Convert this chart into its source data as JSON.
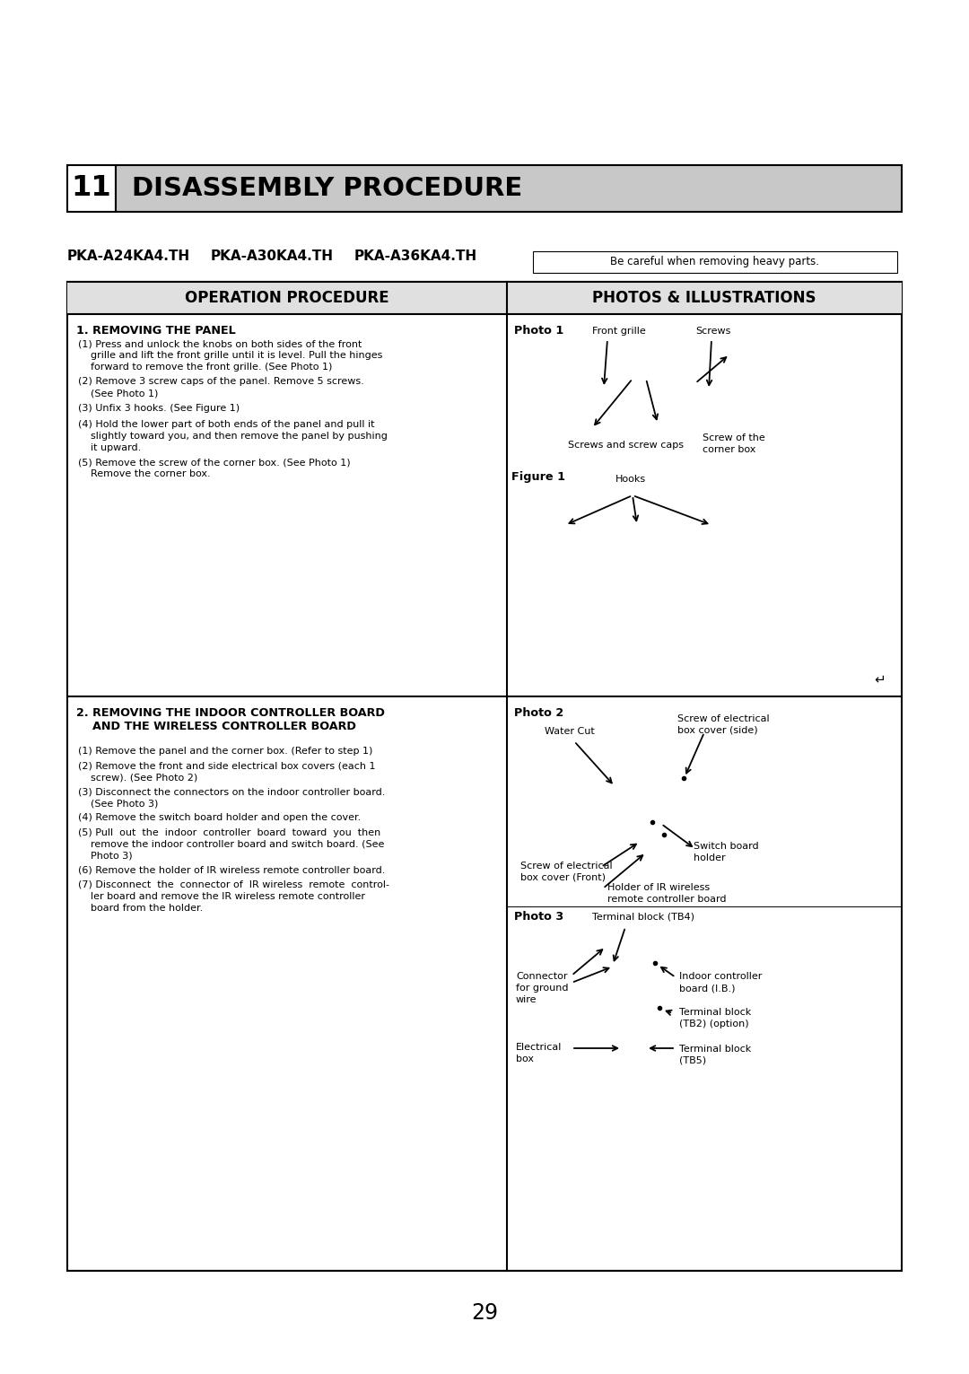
{
  "page_bg": "#ffffff",
  "page_number": "29",
  "section_number": "11",
  "section_title": "DISASSEMBLY PROCEDURE",
  "section_bg": "#c8c8c8",
  "model_line1": "PKA-A24KA4.TH",
  "model_line2": "PKA-A30KA4.TH",
  "model_line3": "PKA-A36KA4.TH",
  "caution_box": "Be careful when removing heavy parts.",
  "col_left_header": "OPERATION PROCEDURE",
  "col_right_header": "PHOTOS & ILLUSTRATIONS",
  "s1_title": "1. REMOVING THE PANEL",
  "s1_step1": "(1) Press and unlock the knobs on both sides of the front\n    grille and lift the front grille until it is level. Pull the hinges\n    forward to remove the front grille. (See Photo 1)",
  "s1_step2": "(2) Remove 3 screw caps of the panel. Remove 5 screws.\n    (See Photo 1)",
  "s1_step3": "(3) Unfix 3 hooks. (See Figure 1)",
  "s1_step4": "(4) Hold the lower part of both ends of the panel and pull it\n    slightly toward you, and then remove the panel by pushing\n    it upward.",
  "s1_step5": "(5) Remove the screw of the corner box. (See Photo 1)\n    Remove the corner box.",
  "s2_title1": "2. REMOVING THE INDOOR CONTROLLER BOARD",
  "s2_title2": "    AND THE WIRELESS CONTROLLER BOARD",
  "s2_step1": "(1) Remove the panel and the corner box. (Refer to step 1)",
  "s2_step2": "(2) Remove the front and side electrical box covers (each 1\n    screw). (See Photo 2)",
  "s2_step3": "(3) Disconnect the connectors on the indoor controller board.\n    (See Photo 3)",
  "s2_step4": "(4) Remove the switch board holder and open the cover.",
  "s2_step5": "(5) Pull  out  the  indoor  controller  board  toward  you  then\n    remove the indoor controller board and switch board. (See\n    Photo 3)",
  "s2_step6": "(6) Remove the holder of IR wireless remote controller board.",
  "s2_step7": "(7) Disconnect  the  connector of  IR wireless  remote  control-\n    ler board and remove the IR wireless remote controller\n    board from the holder."
}
